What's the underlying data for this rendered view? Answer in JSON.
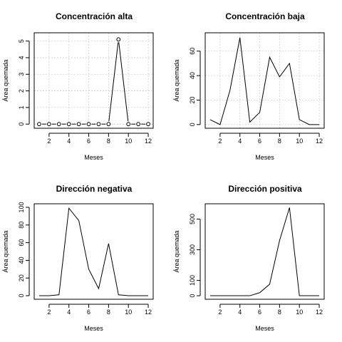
{
  "chart_data": [
    {
      "type": "line",
      "title": "Concentración alta",
      "xlabel": "Meses",
      "ylabel": "Área quemada",
      "x": [
        1,
        2,
        3,
        4,
        5,
        6,
        7,
        8,
        9,
        10,
        11,
        12
      ],
      "values": [
        0,
        0,
        0,
        0,
        0,
        0,
        0,
        0,
        5.1,
        0,
        0,
        0
      ],
      "style": "line-with-points",
      "grid": true,
      "xticks": [
        2,
        4,
        6,
        8,
        10,
        12
      ],
      "yticks": [
        0,
        1,
        2,
        3,
        4,
        5
      ],
      "xlim": [
        0.5,
        12.5
      ],
      "ylim": [
        -0.25,
        5.5
      ]
    },
    {
      "type": "line",
      "title": "Concentración baja",
      "xlabel": "Meses",
      "ylabel": "Área quemada",
      "x": [
        1,
        2,
        3,
        4,
        5,
        6,
        7,
        8,
        9,
        10,
        11,
        12
      ],
      "values": [
        4,
        0,
        28,
        71,
        2,
        10,
        55,
        39,
        50,
        4,
        0,
        0
      ],
      "style": "line",
      "grid": true,
      "xticks": [
        2,
        4,
        6,
        8,
        10,
        12
      ],
      "yticks": [
        0,
        20,
        40,
        60
      ],
      "xlim": [
        0.5,
        12.5
      ],
      "ylim": [
        -3,
        75
      ]
    },
    {
      "type": "line",
      "title": "Dirección negativa",
      "xlabel": "Meses",
      "ylabel": "Área quemada",
      "x": [
        1,
        2,
        3,
        4,
        5,
        6,
        7,
        8,
        9,
        10,
        11,
        12
      ],
      "values": [
        0,
        0,
        1,
        99,
        85,
        30,
        8,
        59,
        1,
        0,
        0,
        0
      ],
      "style": "line",
      "grid": false,
      "xticks": [
        2,
        4,
        6,
        8,
        10,
        12
      ],
      "yticks": [
        0,
        20,
        40,
        60,
        80,
        100
      ],
      "xlim": [
        0.5,
        12.5
      ],
      "ylim": [
        -4,
        104
      ]
    },
    {
      "type": "line",
      "title": "Dirección positiva",
      "xlabel": "Meses",
      "ylabel": "Área quemada",
      "x": [
        1,
        2,
        3,
        4,
        5,
        6,
        7,
        8,
        9,
        10,
        11,
        12
      ],
      "values": [
        0,
        0,
        0,
        0,
        0,
        20,
        75,
        360,
        575,
        0,
        0,
        0
      ],
      "style": "line",
      "grid": false,
      "xticks": [
        2,
        4,
        6,
        8,
        10,
        12
      ],
      "yticks": [
        0,
        100,
        300,
        500
      ],
      "xlim": [
        0.5,
        12.5
      ],
      "ylim": [
        -23,
        600
      ]
    }
  ]
}
